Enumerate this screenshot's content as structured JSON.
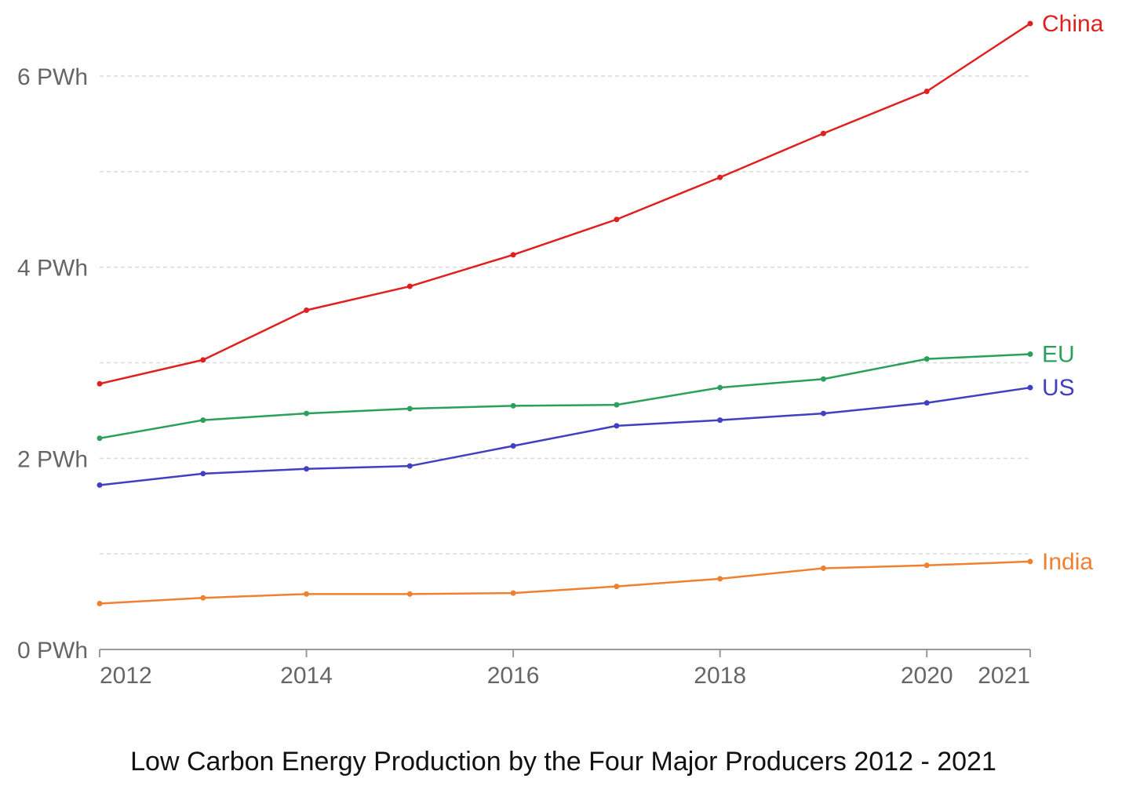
{
  "chart_data": {
    "type": "line",
    "title": "Low Carbon Energy Production by the Four Major Producers 2012 - 2021",
    "xlabel": "",
    "ylabel": "",
    "x": [
      2012,
      2013,
      2014,
      2015,
      2016,
      2017,
      2018,
      2019,
      2020,
      2021
    ],
    "xlim": [
      2012,
      2021
    ],
    "ylim": [
      0,
      6
    ],
    "y_unit": "PWh",
    "grid": true,
    "x_tick_values": [
      2012,
      2014,
      2016,
      2018,
      2020,
      2021
    ],
    "x_tick_labels": [
      "2012",
      "2014",
      "2016",
      "2018",
      "2020",
      "2021"
    ],
    "y_tick_values": [
      0,
      2,
      4,
      6
    ],
    "y_tick_labels": [
      "0 PWh",
      "2 PWh",
      "4 PWh",
      "6 PWh"
    ],
    "y_grid_values": [
      1,
      2,
      3,
      4,
      5,
      6
    ],
    "series": [
      {
        "name": "China",
        "color": "#e0201f",
        "values": [
          2.78,
          3.03,
          3.55,
          3.8,
          4.13,
          4.5,
          4.94,
          5.4,
          5.84,
          6.55
        ]
      },
      {
        "name": "EU",
        "color": "#2ca05a",
        "values": [
          2.21,
          2.4,
          2.47,
          2.52,
          2.55,
          2.56,
          2.74,
          2.83,
          3.04,
          3.09
        ]
      },
      {
        "name": "US",
        "color": "#4040c0",
        "values": [
          1.72,
          1.84,
          1.89,
          1.92,
          2.13,
          2.34,
          2.4,
          2.47,
          2.58,
          2.74
        ]
      },
      {
        "name": "India",
        "color": "#f08030",
        "values": [
          0.48,
          0.54,
          0.58,
          0.58,
          0.59,
          0.66,
          0.74,
          0.85,
          0.88,
          0.92
        ]
      }
    ]
  }
}
